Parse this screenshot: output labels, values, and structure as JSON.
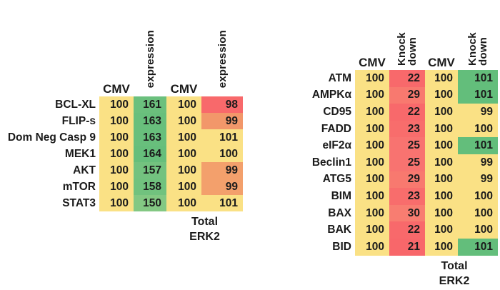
{
  "colors": {
    "background": "#FFFFFF",
    "text": "#1B1B1B",
    "scale_low_red": "#F8696B",
    "scale_mid_yellow": "#FAE185",
    "scale_high_green": "#63BE7B"
  },
  "chart_data": [
    {
      "type": "heatmap",
      "panel": "overexpression-panel",
      "columns": [
        "CMV",
        "expression",
        "CMV",
        "expression"
      ],
      "rotated_columns": [
        false,
        true,
        false,
        true
      ],
      "rows": [
        {
          "label": "BCL-XL",
          "values": [
            100,
            161,
            100,
            98
          ],
          "colors": [
            "#FAE185",
            "#6BC07D",
            "#FAE185",
            "#F8696B"
          ]
        },
        {
          "label": "FLIP-s",
          "values": [
            100,
            163,
            100,
            99
          ],
          "colors": [
            "#FAE185",
            "#68BF7C",
            "#FAE185",
            "#F2976A"
          ]
        },
        {
          "label": "Dom Neg Casp 9",
          "values": [
            100,
            163,
            100,
            101
          ],
          "colors": [
            "#FAE185",
            "#68BF7C",
            "#FAE185",
            "#FAE185"
          ]
        },
        {
          "label": "MEK1",
          "values": [
            100,
            164,
            100,
            100
          ],
          "colors": [
            "#FAE185",
            "#66BE7B",
            "#FAE185",
            "#FAE185"
          ]
        },
        {
          "label": "AKT",
          "values": [
            100,
            157,
            100,
            99
          ],
          "colors": [
            "#FAE185",
            "#73C27F",
            "#FAE185",
            "#F3A06C"
          ]
        },
        {
          "label": "mTOR",
          "values": [
            100,
            158,
            100,
            99
          ],
          "colors": [
            "#FAE185",
            "#71C27E",
            "#FAE185",
            "#F3A06C"
          ]
        },
        {
          "label": "STAT3",
          "values": [
            100,
            150,
            100,
            101
          ],
          "colors": [
            "#FAE185",
            "#83C883",
            "#FAE185",
            "#FAE185"
          ]
        }
      ],
      "footer_lines": [
        "Total",
        "ERK2"
      ]
    },
    {
      "type": "heatmap",
      "panel": "knockdown-panel",
      "columns": [
        "CMV",
        "Knock down",
        "CMV",
        "Knock down"
      ],
      "rotated_columns": [
        false,
        true,
        false,
        true
      ],
      "rows": [
        {
          "label": "ATM",
          "values": [
            100,
            22,
            100,
            101
          ],
          "colors": [
            "#FAE185",
            "#F8696B",
            "#FAE185",
            "#63BE7B"
          ]
        },
        {
          "label": "AMPKα",
          "values": [
            100,
            29,
            100,
            101
          ],
          "colors": [
            "#FAE185",
            "#F8796F",
            "#FAE185",
            "#63BE7B"
          ]
        },
        {
          "label": "CD95",
          "values": [
            100,
            22,
            100,
            99
          ],
          "colors": [
            "#FAE185",
            "#F8696B",
            "#FAE185",
            "#FAE185"
          ]
        },
        {
          "label": "FADD",
          "values": [
            100,
            23,
            100,
            100
          ],
          "colors": [
            "#FAE185",
            "#F86D6C",
            "#FAE185",
            "#FAE185"
          ]
        },
        {
          "label": "eIF2α",
          "values": [
            100,
            25,
            100,
            101
          ],
          "colors": [
            "#FAE185",
            "#F87370",
            "#FAE185",
            "#63BE7B"
          ]
        },
        {
          "label": "Beclin1",
          "values": [
            100,
            25,
            100,
            99
          ],
          "colors": [
            "#FAE185",
            "#F87370",
            "#FAE185",
            "#FAE185"
          ]
        },
        {
          "label": "ATG5",
          "values": [
            100,
            29,
            100,
            99
          ],
          "colors": [
            "#FAE185",
            "#F8796F",
            "#FAE185",
            "#FAE185"
          ]
        },
        {
          "label": "BIM",
          "values": [
            100,
            23,
            100,
            100
          ],
          "colors": [
            "#FAE185",
            "#F86D6C",
            "#FAE185",
            "#FAE185"
          ]
        },
        {
          "label": "BAX",
          "values": [
            100,
            30,
            100,
            100
          ],
          "colors": [
            "#FAE185",
            "#F87D71",
            "#FAE185",
            "#FAE185"
          ]
        },
        {
          "label": "BAK",
          "values": [
            100,
            22,
            100,
            100
          ],
          "colors": [
            "#FAE185",
            "#F8696B",
            "#FAE185",
            "#FAE185"
          ]
        },
        {
          "label": "BID",
          "values": [
            100,
            21,
            100,
            101
          ],
          "colors": [
            "#FAE185",
            "#F8676A",
            "#FAE185",
            "#63BE7B"
          ]
        }
      ],
      "footer_lines": [
        "Total",
        "ERK2"
      ]
    }
  ]
}
